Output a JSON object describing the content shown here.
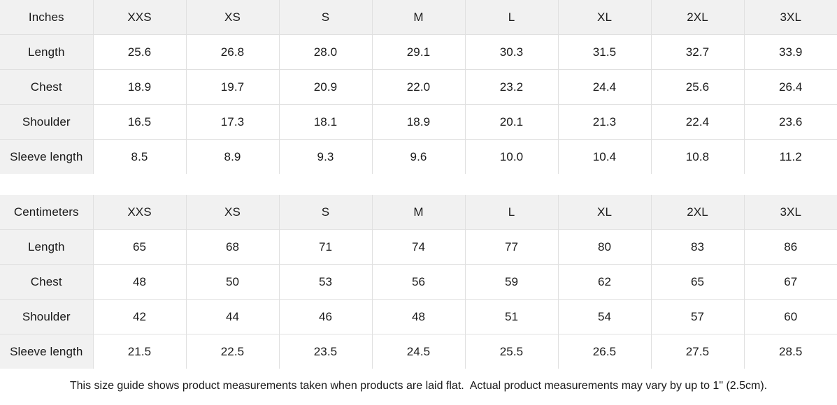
{
  "colors": {
    "header_bg": "#f1f1f1",
    "border": "#e0e0e0",
    "text": "#1a1a1a",
    "background": "#ffffff"
  },
  "tables": [
    {
      "unit_label": "Inches",
      "sizes": [
        "XXS",
        "XS",
        "S",
        "M",
        "L",
        "XL",
        "2XL",
        "3XL"
      ],
      "rows": [
        {
          "label": "Length",
          "values": [
            "25.6",
            "26.8",
            "28.0",
            "29.1",
            "30.3",
            "31.5",
            "32.7",
            "33.9"
          ]
        },
        {
          "label": "Chest",
          "values": [
            "18.9",
            "19.7",
            "20.9",
            "22.0",
            "23.2",
            "24.4",
            "25.6",
            "26.4"
          ]
        },
        {
          "label": "Shoulder",
          "values": [
            "16.5",
            "17.3",
            "18.1",
            "18.9",
            "20.1",
            "21.3",
            "22.4",
            "23.6"
          ]
        },
        {
          "label": "Sleeve length",
          "values": [
            "8.5",
            "8.9",
            "9.3",
            "9.6",
            "10.0",
            "10.4",
            "10.8",
            "11.2"
          ]
        }
      ]
    },
    {
      "unit_label": "Centimeters",
      "sizes": [
        "XXS",
        "XS",
        "S",
        "M",
        "L",
        "XL",
        "2XL",
        "3XL"
      ],
      "rows": [
        {
          "label": "Length",
          "values": [
            "65",
            "68",
            "71",
            "74",
            "77",
            "80",
            "83",
            "86"
          ]
        },
        {
          "label": "Chest",
          "values": [
            "48",
            "50",
            "53",
            "56",
            "59",
            "62",
            "65",
            "67"
          ]
        },
        {
          "label": "Shoulder",
          "values": [
            "42",
            "44",
            "46",
            "48",
            "51",
            "54",
            "57",
            "60"
          ]
        },
        {
          "label": "Sleeve length",
          "values": [
            "21.5",
            "22.5",
            "23.5",
            "24.5",
            "25.5",
            "26.5",
            "27.5",
            "28.5"
          ]
        }
      ]
    }
  ],
  "footer": {
    "note": "This size guide shows product measurements taken when products are laid flat.  Actual product measurements may vary by up to 1\" (2.5cm)."
  }
}
